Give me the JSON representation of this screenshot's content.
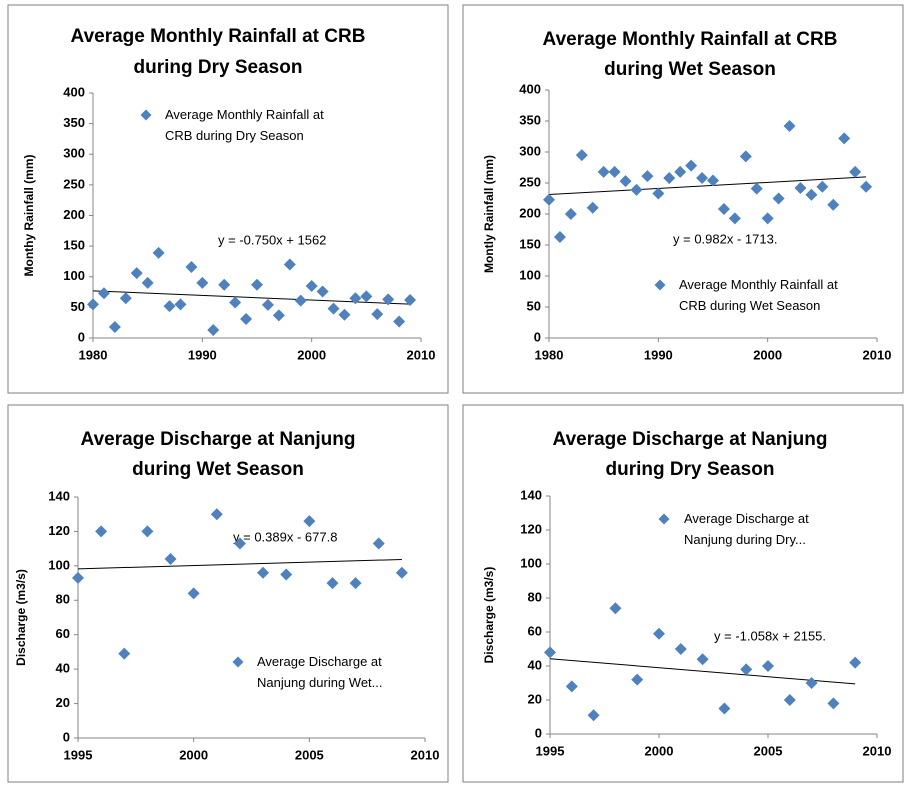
{
  "chart_data": [
    {
      "type": "scatter",
      "title": [
        "Average Monthly Rainfall at CRB",
        "during Dry Season"
      ],
      "y_label": "Monthy Rainfall (mm)",
      "x": [
        1980,
        1981,
        1982,
        1983,
        1984,
        1985,
        1986,
        1987,
        1988,
        1989,
        1990,
        1991,
        1992,
        1993,
        1994,
        1995,
        1996,
        1997,
        1998,
        1999,
        2000,
        2001,
        2002,
        2003,
        2004,
        2005,
        2006,
        2007,
        2008,
        2009
      ],
      "series": [
        {
          "name": "Average Monthly Rainfall at CRB during Dry Season",
          "color": "#4f81bd",
          "values": [
            55,
            73,
            18,
            65,
            106,
            90,
            139,
            52,
            55,
            116,
            90,
            13,
            87,
            58,
            31,
            87,
            54,
            37,
            120,
            61,
            85,
            76,
            48,
            38,
            65,
            68,
            39,
            63,
            27,
            62
          ]
        }
      ],
      "xlim": [
        1980,
        2010
      ],
      "xticks": [
        1980,
        1990,
        2000,
        2010
      ],
      "ylim": [
        0,
        400
      ],
      "yticks": [
        0,
        50,
        100,
        150,
        200,
        250,
        300,
        350,
        400
      ],
      "trendline": {
        "label": "y = -0.750x + 1562",
        "slope": -0.75,
        "intercept": 1562
      }
    },
    {
      "type": "scatter",
      "title": [
        "Average Monthly Rainfall at CRB",
        "during Wet Season"
      ],
      "y_label": "Montly Rainfall (mm)",
      "x": [
        1980,
        1981,
        1982,
        1983,
        1984,
        1985,
        1986,
        1987,
        1988,
        1989,
        1990,
        1991,
        1992,
        1993,
        1994,
        1995,
        1996,
        1997,
        1998,
        1999,
        2000,
        2001,
        2002,
        2003,
        2004,
        2005,
        2006,
        2007,
        2008,
        2009
      ],
      "series": [
        {
          "name": "Average Monthly Rainfall at CRB during Wet Season",
          "color": "#4f81bd",
          "values": [
            223,
            163,
            200,
            295,
            210,
            268,
            268,
            253,
            239,
            261,
            233,
            258,
            268,
            278,
            258,
            254,
            208,
            193,
            293,
            241,
            193,
            225,
            342,
            242,
            231,
            244,
            215,
            322,
            268,
            244
          ]
        }
      ],
      "xlim": [
        1980,
        2010
      ],
      "xticks": [
        1980,
        1990,
        2000,
        2010
      ],
      "ylim": [
        0,
        400
      ],
      "yticks": [
        0,
        50,
        100,
        150,
        200,
        250,
        300,
        350,
        400
      ],
      "trendline": {
        "label": "y = 0.982x - 1713.",
        "slope": 0.982,
        "intercept": -1713
      }
    },
    {
      "type": "scatter",
      "title": [
        "Average Discharge at Nanjung",
        "during Wet Season"
      ],
      "y_label": "Discharge (m3/s)",
      "x": [
        1995,
        1996,
        1997,
        1998,
        1999,
        2000,
        2001,
        2002,
        2003,
        2004,
        2005,
        2006,
        2007,
        2008,
        2009
      ],
      "series": [
        {
          "name": "Average Discharge at Nanjung during Wet...",
          "color": "#4f81bd",
          "values": [
            93,
            120,
            49,
            120,
            104,
            84,
            130,
            113,
            96,
            95,
            126,
            90,
            90,
            113,
            96
          ]
        }
      ],
      "xlim": [
        1995,
        2010
      ],
      "xticks": [
        1995,
        2000,
        2005,
        2010
      ],
      "ylim": [
        0,
        140
      ],
      "yticks": [
        0,
        20,
        40,
        60,
        80,
        100,
        120,
        140
      ],
      "trendline": {
        "label": "y = 0.389x - 677.8",
        "slope": 0.389,
        "intercept": -677.8
      }
    },
    {
      "type": "scatter",
      "title": [
        "Average Discharge at Nanjung",
        "during Dry Season"
      ],
      "y_label": "Discharge (m3/s)",
      "x": [
        1995,
        1996,
        1997,
        1998,
        1999,
        2000,
        2001,
        2002,
        2003,
        2004,
        2005,
        2006,
        2007,
        2008,
        2009
      ],
      "series": [
        {
          "name": "Average Discharge at Nanjung during Dry...",
          "color": "#4f81bd",
          "values": [
            48,
            28,
            11,
            74,
            32,
            59,
            50,
            44,
            15,
            38,
            40,
            20,
            30,
            18,
            42
          ]
        }
      ],
      "xlim": [
        1995,
        2010
      ],
      "xticks": [
        1995,
        2000,
        2005,
        2010
      ],
      "ylim": [
        0,
        140
      ],
      "yticks": [
        0,
        20,
        40,
        60,
        80,
        100,
        120,
        140
      ],
      "trendline": {
        "label": "y = -1.058x + 2155.",
        "slope": -1.058,
        "intercept": 2155
      }
    }
  ]
}
